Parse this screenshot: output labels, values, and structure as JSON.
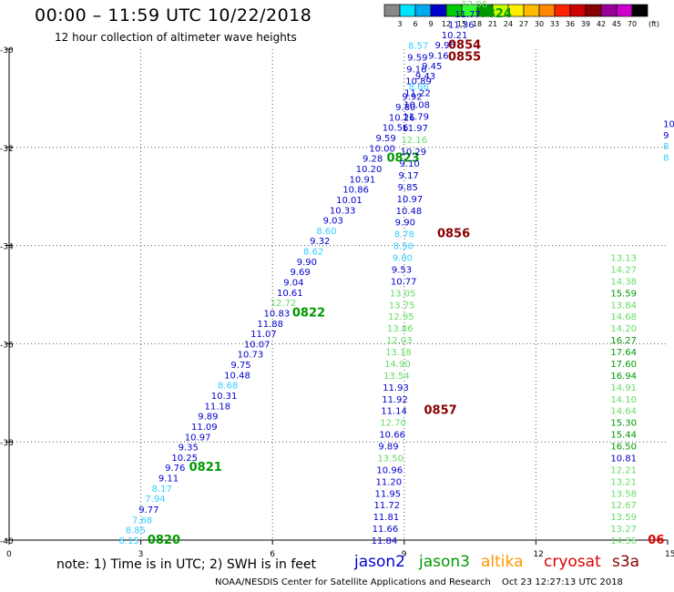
{
  "title": "00:00 – 11:59 UTC 10/22/2018",
  "subtitle": "12 hour collection of altimeter wave heights",
  "note": "note: 1) Time is in UTC; 2) SWH is in feet",
  "satellites": [
    {
      "name": "jason2",
      "color": "#0000cc"
    },
    {
      "name": "jason3",
      "color": "#009900"
    },
    {
      "name": "altika",
      "color": "#ff9900"
    },
    {
      "name": "cryosat",
      "color": "#dd0000"
    },
    {
      "name": "s3a",
      "color": "#880000"
    }
  ],
  "credit": "NOAA/NESDIS Center for Satellite Applications and Research",
  "timestamp": "Oct 23 12:27:13 UTC 2018",
  "color_scale": {
    "unit": "(ft)",
    "labels": [
      "3",
      "6",
      "9",
      "12",
      "15",
      "18",
      "21",
      "24",
      "27",
      "30",
      "33",
      "36",
      "39",
      "42",
      "45",
      "70"
    ],
    "colors": [
      "#888888",
      "#00e5ff",
      "#00aaee",
      "#0000cc",
      "#00cc00",
      "#33ff33",
      "#009900",
      "#ccff00",
      "#ffee00",
      "#ffbb00",
      "#ff8800",
      "#ff2200",
      "#cc0000",
      "#880000",
      "#990099",
      "#cc00cc",
      "#000000"
    ]
  },
  "chart_data": {
    "type": "scatter",
    "xlim": [
      0,
      15
    ],
    "ylim": [
      -40,
      -30
    ],
    "xticks": [
      "0",
      "3",
      "6",
      "9",
      "12",
      "15"
    ],
    "yticks": [
      "-30",
      "-32",
      "-34",
      "-36",
      "-38",
      "-40"
    ],
    "grid": true,
    "labels": [
      {
        "text": "8.15",
        "x": 2.5,
        "y": -40.0,
        "color": "#33ccff",
        "size": 10
      },
      {
        "text": "0820",
        "x": 3.15,
        "y": -40.0,
        "color": "#009900",
        "size": 13,
        "bold": true
      },
      {
        "text": "8.85",
        "x": 2.65,
        "y": -39.79,
        "color": "#33ccff",
        "size": 10
      },
      {
        "text": "7.68",
        "x": 2.8,
        "y": -39.58,
        "color": "#33ccff",
        "size": 10
      },
      {
        "text": "9.77",
        "x": 2.95,
        "y": -39.37,
        "color": "#0000cc",
        "size": 10
      },
      {
        "text": "7.94",
        "x": 3.1,
        "y": -39.15,
        "color": "#33ccff",
        "size": 10
      },
      {
        "text": "8.17",
        "x": 3.25,
        "y": -38.94,
        "color": "#33ccff",
        "size": 10
      },
      {
        "text": "9.11",
        "x": 3.4,
        "y": -38.73,
        "color": "#0000cc",
        "size": 10
      },
      {
        "text": "9.76",
        "x": 3.55,
        "y": -38.52,
        "color": "#0000cc",
        "size": 10
      },
      {
        "text": "0821",
        "x": 4.1,
        "y": -38.52,
        "color": "#009900",
        "size": 13,
        "bold": true
      },
      {
        "text": "10.25",
        "x": 3.7,
        "y": -38.31,
        "color": "#0000cc",
        "size": 10
      },
      {
        "text": "9.35",
        "x": 3.85,
        "y": -38.1,
        "color": "#0000cc",
        "size": 10
      },
      {
        "text": "10.97",
        "x": 4.0,
        "y": -37.89,
        "color": "#0000cc",
        "size": 10
      },
      {
        "text": "11.09",
        "x": 4.15,
        "y": -37.68,
        "color": "#0000cc",
        "size": 10
      },
      {
        "text": "9.89",
        "x": 4.3,
        "y": -37.47,
        "color": "#0000cc",
        "size": 10
      },
      {
        "text": "11.18",
        "x": 4.45,
        "y": -37.26,
        "color": "#0000cc",
        "size": 10
      },
      {
        "text": "10.31",
        "x": 4.6,
        "y": -37.05,
        "color": "#0000cc",
        "size": 10
      },
      {
        "text": "8.68",
        "x": 4.75,
        "y": -36.84,
        "color": "#33ccff",
        "size": 10
      },
      {
        "text": "10.48",
        "x": 4.9,
        "y": -36.63,
        "color": "#0000cc",
        "size": 10
      },
      {
        "text": "9.75",
        "x": 5.05,
        "y": -36.42,
        "color": "#0000cc",
        "size": 10
      },
      {
        "text": "10.73",
        "x": 5.2,
        "y": -36.21,
        "color": "#0000cc",
        "size": 10
      },
      {
        "text": "10.07",
        "x": 5.35,
        "y": -36.0,
        "color": "#0000cc",
        "size": 10
      },
      {
        "text": "11.07",
        "x": 5.5,
        "y": -35.79,
        "color": "#0000cc",
        "size": 10
      },
      {
        "text": "11.88",
        "x": 5.65,
        "y": -35.58,
        "color": "#0000cc",
        "size": 10
      },
      {
        "text": "10.83",
        "x": 5.8,
        "y": -35.37,
        "color": "#0000cc",
        "size": 10
      },
      {
        "text": "0822",
        "x": 6.45,
        "y": -35.37,
        "color": "#009900",
        "size": 13,
        "bold": true
      },
      {
        "text": "12.72",
        "x": 5.95,
        "y": -35.16,
        "color": "#66dd66",
        "size": 10
      },
      {
        "text": "10.61",
        "x": 6.1,
        "y": -34.95,
        "color": "#0000cc",
        "size": 10
      },
      {
        "text": "9.04",
        "x": 6.25,
        "y": -34.74,
        "color": "#0000cc",
        "size": 10
      },
      {
        "text": "9.69",
        "x": 6.4,
        "y": -34.53,
        "color": "#0000cc",
        "size": 10
      },
      {
        "text": "9.90",
        "x": 6.55,
        "y": -34.32,
        "color": "#0000cc",
        "size": 10
      },
      {
        "text": "8.62",
        "x": 6.7,
        "y": -34.11,
        "color": "#33ccff",
        "size": 10
      },
      {
        "text": "9.32",
        "x": 6.85,
        "y": -33.9,
        "color": "#0000cc",
        "size": 10
      },
      {
        "text": "8.60",
        "x": 7.0,
        "y": -33.69,
        "color": "#33ccff",
        "size": 10
      },
      {
        "text": "9.03",
        "x": 7.15,
        "y": -33.48,
        "color": "#0000cc",
        "size": 10
      },
      {
        "text": "10.33",
        "x": 7.3,
        "y": -33.27,
        "color": "#0000cc",
        "size": 10
      },
      {
        "text": "10.01",
        "x": 7.45,
        "y": -33.06,
        "color": "#0000cc",
        "size": 10
      },
      {
        "text": "10.86",
        "x": 7.6,
        "y": -32.85,
        "color": "#0000cc",
        "size": 10
      },
      {
        "text": "10.91",
        "x": 7.75,
        "y": -32.64,
        "color": "#0000cc",
        "size": 10
      },
      {
        "text": "10.20",
        "x": 7.9,
        "y": -32.43,
        "color": "#0000cc",
        "size": 10
      },
      {
        "text": "9.28",
        "x": 8.05,
        "y": -32.22,
        "color": "#0000cc",
        "size": 10
      },
      {
        "text": "0823",
        "x": 8.6,
        "y": -32.22,
        "color": "#009900",
        "size": 13,
        "bold": true
      },
      {
        "text": "10.00",
        "x": 8.2,
        "y": -32.01,
        "color": "#0000cc",
        "size": 10
      },
      {
        "text": "9.59",
        "x": 8.35,
        "y": -31.8,
        "color": "#0000cc",
        "size": 10
      },
      {
        "text": "10.56",
        "x": 8.5,
        "y": -31.59,
        "color": "#0000cc",
        "size": 10
      },
      {
        "text": "10.26",
        "x": 8.65,
        "y": -31.38,
        "color": "#0000cc",
        "size": 10
      },
      {
        "text": "9.80",
        "x": 8.8,
        "y": -31.17,
        "color": "#0000cc",
        "size": 10
      },
      {
        "text": "9.92",
        "x": 8.95,
        "y": -30.96,
        "color": "#0000cc",
        "size": 10
      },
      {
        "text": "8.66",
        "x": 9.1,
        "y": -30.75,
        "color": "#33ccff",
        "size": 10
      },
      {
        "text": "9.43",
        "x": 9.25,
        "y": -30.54,
        "color": "#0000cc",
        "size": 10
      },
      {
        "text": "9.45",
        "x": 9.4,
        "y": -30.33,
        "color": "#0000cc",
        "size": 10
      },
      {
        "text": "9.16",
        "x": 9.55,
        "y": -30.12,
        "color": "#0000cc",
        "size": 10
      },
      {
        "text": "9.96",
        "x": 9.7,
        "y": -29.91,
        "color": "#0000cc",
        "size": 10
      },
      {
        "text": "10.21",
        "x": 9.85,
        "y": -29.7,
        "color": "#0000cc",
        "size": 10
      },
      {
        "text": "11.36",
        "x": 10.0,
        "y": -29.49,
        "color": "#0000cc",
        "size": 10
      },
      {
        "text": "11.77",
        "x": 10.15,
        "y": -29.28,
        "color": "#0000cc",
        "size": 10
      },
      {
        "text": "0824",
        "x": 10.7,
        "y": -29.28,
        "color": "#009900",
        "size": 13,
        "bold": true
      },
      {
        "text": "12.06",
        "x": 10.3,
        "y": -29.07,
        "color": "#66dd66",
        "size": 10
      },
      {
        "text": "11.84",
        "x": 8.25,
        "y": -40.0,
        "color": "#0000cc",
        "size": 10
      },
      {
        "text": "11.66",
        "x": 8.27,
        "y": -39.76,
        "color": "#0000cc",
        "size": 10
      },
      {
        "text": "11.81",
        "x": 8.29,
        "y": -39.52,
        "color": "#0000cc",
        "size": 10
      },
      {
        "text": "11.72",
        "x": 8.31,
        "y": -39.28,
        "color": "#0000cc",
        "size": 10
      },
      {
        "text": "11.95",
        "x": 8.33,
        "y": -39.04,
        "color": "#0000cc",
        "size": 10
      },
      {
        "text": "11.20",
        "x": 8.35,
        "y": -38.8,
        "color": "#0000cc",
        "size": 10
      },
      {
        "text": "10.96",
        "x": 8.37,
        "y": -38.56,
        "color": "#0000cc",
        "size": 10
      },
      {
        "text": "13.50",
        "x": 8.39,
        "y": -38.32,
        "color": "#66dd66",
        "size": 10
      },
      {
        "text": "9.89",
        "x": 8.41,
        "y": -38.08,
        "color": "#0000cc",
        "size": 10
      },
      {
        "text": "10.66",
        "x": 8.43,
        "y": -37.84,
        "color": "#0000cc",
        "size": 10
      },
      {
        "text": "12.70",
        "x": 8.45,
        "y": -37.6,
        "color": "#66dd66",
        "size": 10
      },
      {
        "text": "11.14",
        "x": 8.47,
        "y": -37.36,
        "color": "#0000cc",
        "size": 10
      },
      {
        "text": "0857",
        "x": 9.45,
        "y": -37.36,
        "color": "#880000",
        "size": 13,
        "bold": true
      },
      {
        "text": "11.92",
        "x": 8.49,
        "y": -37.12,
        "color": "#0000cc",
        "size": 10
      },
      {
        "text": "11.93",
        "x": 8.51,
        "y": -36.88,
        "color": "#0000cc",
        "size": 10
      },
      {
        "text": "13.54",
        "x": 8.53,
        "y": -36.64,
        "color": "#66dd66",
        "size": 10
      },
      {
        "text": "14.90",
        "x": 8.55,
        "y": -36.4,
        "color": "#66dd66",
        "size": 10
      },
      {
        "text": "13.18",
        "x": 8.57,
        "y": -36.16,
        "color": "#66dd66",
        "size": 10
      },
      {
        "text": "12.03",
        "x": 8.59,
        "y": -35.92,
        "color": "#66dd66",
        "size": 10
      },
      {
        "text": "13.86",
        "x": 8.61,
        "y": -35.68,
        "color": "#66dd66",
        "size": 10
      },
      {
        "text": "12.95",
        "x": 8.63,
        "y": -35.44,
        "color": "#66dd66",
        "size": 10
      },
      {
        "text": "13.75",
        "x": 8.65,
        "y": -35.2,
        "color": "#66dd66",
        "size": 10
      },
      {
        "text": "13.05",
        "x": 8.67,
        "y": -34.96,
        "color": "#66dd66",
        "size": 10
      },
      {
        "text": "10.77",
        "x": 8.69,
        "y": -34.72,
        "color": "#0000cc",
        "size": 10
      },
      {
        "text": "9.53",
        "x": 8.71,
        "y": -34.48,
        "color": "#0000cc",
        "size": 10
      },
      {
        "text": "9.00",
        "x": 8.73,
        "y": -34.24,
        "color": "#33ccff",
        "size": 10
      },
      {
        "text": "8.50",
        "x": 8.75,
        "y": -34.0,
        "color": "#33ccff",
        "size": 10
      },
      {
        "text": "8.78",
        "x": 8.77,
        "y": -33.76,
        "color": "#33ccff",
        "size": 10
      },
      {
        "text": "0856",
        "x": 9.75,
        "y": -33.76,
        "color": "#880000",
        "size": 13,
        "bold": true
      },
      {
        "text": "9.90",
        "x": 8.79,
        "y": -33.52,
        "color": "#0000cc",
        "size": 10
      },
      {
        "text": "10.48",
        "x": 8.81,
        "y": -33.28,
        "color": "#0000cc",
        "size": 10
      },
      {
        "text": "10.97",
        "x": 8.83,
        "y": -33.04,
        "color": "#0000cc",
        "size": 10
      },
      {
        "text": "9.85",
        "x": 8.85,
        "y": -32.8,
        "color": "#0000cc",
        "size": 10
      },
      {
        "text": "9.17",
        "x": 8.87,
        "y": -32.56,
        "color": "#0000cc",
        "size": 10
      },
      {
        "text": "9.10",
        "x": 8.89,
        "y": -32.32,
        "color": "#0000cc",
        "size": 10
      },
      {
        "text": "10.29",
        "x": 8.91,
        "y": -32.08,
        "color": "#0000cc",
        "size": 10
      },
      {
        "text": "12.16",
        "x": 8.93,
        "y": -31.84,
        "color": "#66dd66",
        "size": 10
      },
      {
        "text": "11.97",
        "x": 8.95,
        "y": -31.6,
        "color": "#0000cc",
        "size": 10
      },
      {
        "text": "11.79",
        "x": 8.97,
        "y": -31.36,
        "color": "#0000cc",
        "size": 10
      },
      {
        "text": "10.08",
        "x": 8.99,
        "y": -31.12,
        "color": "#0000cc",
        "size": 10
      },
      {
        "text": "11.22",
        "x": 9.01,
        "y": -30.88,
        "color": "#0000cc",
        "size": 10
      },
      {
        "text": "10.89",
        "x": 9.03,
        "y": -30.64,
        "color": "#0000cc",
        "size": 10
      },
      {
        "text": "9.16",
        "x": 9.05,
        "y": -30.4,
        "color": "#0000cc",
        "size": 10
      },
      {
        "text": "9.59",
        "x": 9.07,
        "y": -30.16,
        "color": "#0000cc",
        "size": 10
      },
      {
        "text": "0855",
        "x": 10.0,
        "y": -30.16,
        "color": "#880000",
        "size": 13,
        "bold": true
      },
      {
        "text": "8.57",
        "x": 9.09,
        "y": -29.92,
        "color": "#33ccff",
        "size": 10
      },
      {
        "text": "0854",
        "x": 10.0,
        "y": -29.92,
        "color": "#880000",
        "size": 13,
        "bold": true
      },
      {
        "text": "14.36",
        "x": 13.7,
        "y": -40.0,
        "color": "#66dd66",
        "size": 10
      },
      {
        "text": "06",
        "x": 14.55,
        "y": -40.0,
        "color": "#dd0000",
        "size": 13,
        "bold": true
      },
      {
        "text": "13.27",
        "x": 13.7,
        "y": -39.76,
        "color": "#66dd66",
        "size": 10
      },
      {
        "text": "13.59",
        "x": 13.7,
        "y": -39.52,
        "color": "#66dd66",
        "size": 10
      },
      {
        "text": "12.67",
        "x": 13.7,
        "y": -39.28,
        "color": "#66dd66",
        "size": 10
      },
      {
        "text": "13.58",
        "x": 13.7,
        "y": -39.04,
        "color": "#66dd66",
        "size": 10
      },
      {
        "text": "13.21",
        "x": 13.7,
        "y": -38.8,
        "color": "#66dd66",
        "size": 10
      },
      {
        "text": "12.21",
        "x": 13.7,
        "y": -38.56,
        "color": "#66dd66",
        "size": 10
      },
      {
        "text": "10.81",
        "x": 13.7,
        "y": -38.32,
        "color": "#0000cc",
        "size": 10
      },
      {
        "text": "16.50",
        "x": 13.7,
        "y": -38.08,
        "color": "#009900",
        "size": 10
      },
      {
        "text": "15.44",
        "x": 13.7,
        "y": -37.84,
        "color": "#009900",
        "size": 10
      },
      {
        "text": "15.30",
        "x": 13.7,
        "y": -37.6,
        "color": "#009900",
        "size": 10
      },
      {
        "text": "14.64",
        "x": 13.7,
        "y": -37.36,
        "color": "#66dd66",
        "size": 10
      },
      {
        "text": "14.10",
        "x": 13.7,
        "y": -37.12,
        "color": "#66dd66",
        "size": 10
      },
      {
        "text": "14.91",
        "x": 13.7,
        "y": -36.88,
        "color": "#66dd66",
        "size": 10
      },
      {
        "text": "16.94",
        "x": 13.7,
        "y": -36.64,
        "color": "#009900",
        "size": 10
      },
      {
        "text": "17.60",
        "x": 13.7,
        "y": -36.4,
        "color": "#009900",
        "size": 10
      },
      {
        "text": "17.64",
        "x": 13.7,
        "y": -36.16,
        "color": "#009900",
        "size": 10
      },
      {
        "text": "16.27",
        "x": 13.7,
        "y": -35.92,
        "color": "#009900",
        "size": 10
      },
      {
        "text": "14.20",
        "x": 13.7,
        "y": -35.68,
        "color": "#66dd66",
        "size": 10
      },
      {
        "text": "14.68",
        "x": 13.7,
        "y": -35.44,
        "color": "#66dd66",
        "size": 10
      },
      {
        "text": "13.84",
        "x": 13.7,
        "y": -35.2,
        "color": "#66dd66",
        "size": 10
      },
      {
        "text": "15.59",
        "x": 13.7,
        "y": -34.96,
        "color": "#009900",
        "size": 10
      },
      {
        "text": "14.38",
        "x": 13.7,
        "y": -34.72,
        "color": "#66dd66",
        "size": 10
      },
      {
        "text": "14.27",
        "x": 13.7,
        "y": -34.48,
        "color": "#66dd66",
        "size": 10
      },
      {
        "text": "13.13",
        "x": 13.7,
        "y": -34.24,
        "color": "#66dd66",
        "size": 10
      },
      {
        "text": "8",
        "x": 14.9,
        "y": -32.2,
        "color": "#33ccff",
        "size": 10
      },
      {
        "text": "8",
        "x": 14.9,
        "y": -31.97,
        "color": "#33ccff",
        "size": 10
      },
      {
        "text": "9",
        "x": 14.9,
        "y": -31.74,
        "color": "#0000cc",
        "size": 10
      },
      {
        "text": "10",
        "x": 14.9,
        "y": -31.51,
        "color": "#0000cc",
        "size": 10
      }
    ]
  }
}
